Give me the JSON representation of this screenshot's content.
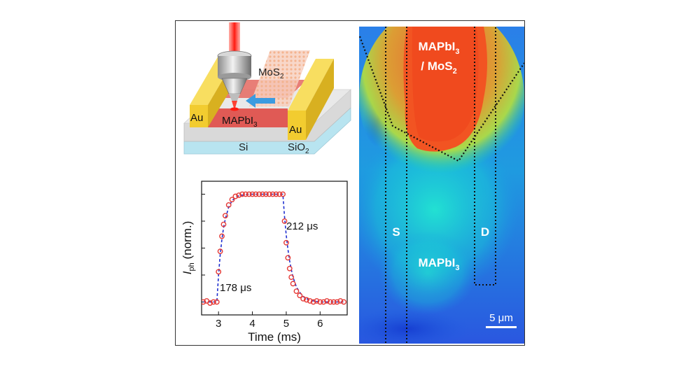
{
  "schematic": {
    "labels": {
      "mos2": "MoS",
      "mos2_sub": "2",
      "au_left": "Au",
      "au_right": "Au",
      "mapbi3": "MAPbI",
      "mapbi3_sub": "3",
      "si": "Si",
      "sio2": "SiO",
      "sio2_sub": "2"
    },
    "colors": {
      "laser": "#e8241c",
      "gold": "#f2cc30",
      "arrow": "#3b9be0",
      "substrate_top": "#dedede",
      "silicon": "#b8e4f0"
    }
  },
  "plot": {
    "ylabel": "I",
    "ylabel_sub": "ph",
    "ylabel_rest": " (norm.)",
    "xlabel": "Time (ms)",
    "ann_rise": "178 μs",
    "ann_fall": "212 μs",
    "x_ticks": [
      "3",
      "4",
      "5",
      "6"
    ]
  },
  "chart_data": {
    "type": "line",
    "xlabel": "Time (ms)",
    "ylabel": "I_ph (norm.)",
    "xlim": [
      2.5,
      6.8
    ],
    "ylim": [
      -0.12,
      1.12
    ],
    "x_ticks": [
      3,
      4,
      5,
      6
    ],
    "y_ticks": [
      0,
      0.25,
      0.5,
      0.75,
      1.0
    ],
    "annotations": [
      "178 μs",
      "212 μs"
    ],
    "series": [
      {
        "style": "markers",
        "color": "#e53935",
        "x": [
          2.55,
          2.65,
          2.75,
          2.85,
          2.95,
          3.0,
          3.05,
          3.1,
          3.15,
          3.2,
          3.3,
          3.4,
          3.5,
          3.6,
          3.7,
          3.8,
          3.9,
          4.0,
          4.1,
          4.2,
          4.3,
          4.4,
          4.5,
          4.6,
          4.7,
          4.8,
          4.9,
          4.95,
          5.0,
          5.05,
          5.1,
          5.15,
          5.2,
          5.3,
          5.4,
          5.5,
          5.6,
          5.7,
          5.8,
          5.9,
          6.0,
          6.1,
          6.2,
          6.3,
          6.4,
          6.5,
          6.6,
          6.7
        ],
        "y": [
          0.0,
          0.01,
          -0.01,
          0.0,
          0.0,
          0.28,
          0.47,
          0.61,
          0.72,
          0.8,
          0.9,
          0.95,
          0.98,
          0.99,
          1.0,
          1.0,
          1.0,
          1.0,
          1.0,
          1.0,
          1.0,
          1.0,
          1.0,
          1.0,
          1.0,
          1.0,
          1.0,
          0.75,
          0.55,
          0.41,
          0.31,
          0.23,
          0.17,
          0.1,
          0.06,
          0.03,
          0.02,
          0.01,
          0.0,
          0.01,
          0.0,
          0.0,
          0.01,
          0.0,
          0.0,
          0.0,
          0.01,
          0.0
        ]
      },
      {
        "style": "dashed-fit",
        "color": "#1f2fd0",
        "x": [
          2.55,
          2.95,
          3.0,
          3.05,
          3.1,
          3.15,
          3.2,
          3.3,
          3.4,
          3.5,
          3.6,
          3.8,
          4.0,
          4.4,
          4.9,
          4.95,
          5.0,
          5.05,
          5.1,
          5.15,
          5.2,
          5.3,
          5.4,
          5.5,
          5.6,
          5.8,
          6.0,
          6.4,
          6.7
        ],
        "y": [
          0.0,
          0.0,
          0.25,
          0.44,
          0.58,
          0.69,
          0.77,
          0.88,
          0.94,
          0.97,
          0.985,
          0.997,
          1.0,
          1.0,
          1.0,
          0.79,
          0.62,
          0.49,
          0.38,
          0.3,
          0.23,
          0.14,
          0.09,
          0.05,
          0.03,
          0.01,
          0.0,
          0.0,
          0.0
        ]
      }
    ]
  },
  "map": {
    "labels": {
      "mapbi3_top": "MAPbI",
      "mapbi3_top_sub": "3",
      "mos2_top": "/ MoS",
      "mos2_top_sub": "2",
      "source": "S",
      "drain": "D",
      "mapbi3_bottom": "MAPbI",
      "mapbi3_bottom_sub": "3",
      "scale": "5 μm"
    },
    "colors": {
      "low": "#1f4fe0",
      "mid": "#10d8c0",
      "high": "#f05020"
    }
  }
}
